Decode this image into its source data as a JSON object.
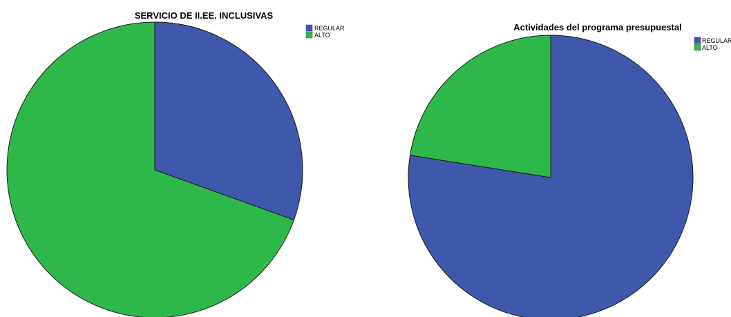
{
  "chart_data": [
    {
      "type": "pie",
      "title": "SERVICIO DE II.EE. INCLUSIVAS",
      "categories": [
        "REGULAR",
        "ALTO"
      ],
      "values": [
        30.5,
        69.5
      ],
      "colors": [
        "#3e58ac",
        "#2fb84a"
      ],
      "legend_position": "top-right"
    },
    {
      "type": "pie",
      "title": "Actividades del programa presupuestal",
      "categories": [
        "REGULAR",
        "ALTO"
      ],
      "values": [
        77.5,
        22.5
      ],
      "colors": [
        "#3e58ac",
        "#2fb84a"
      ],
      "legend_position": "top-right"
    }
  ]
}
